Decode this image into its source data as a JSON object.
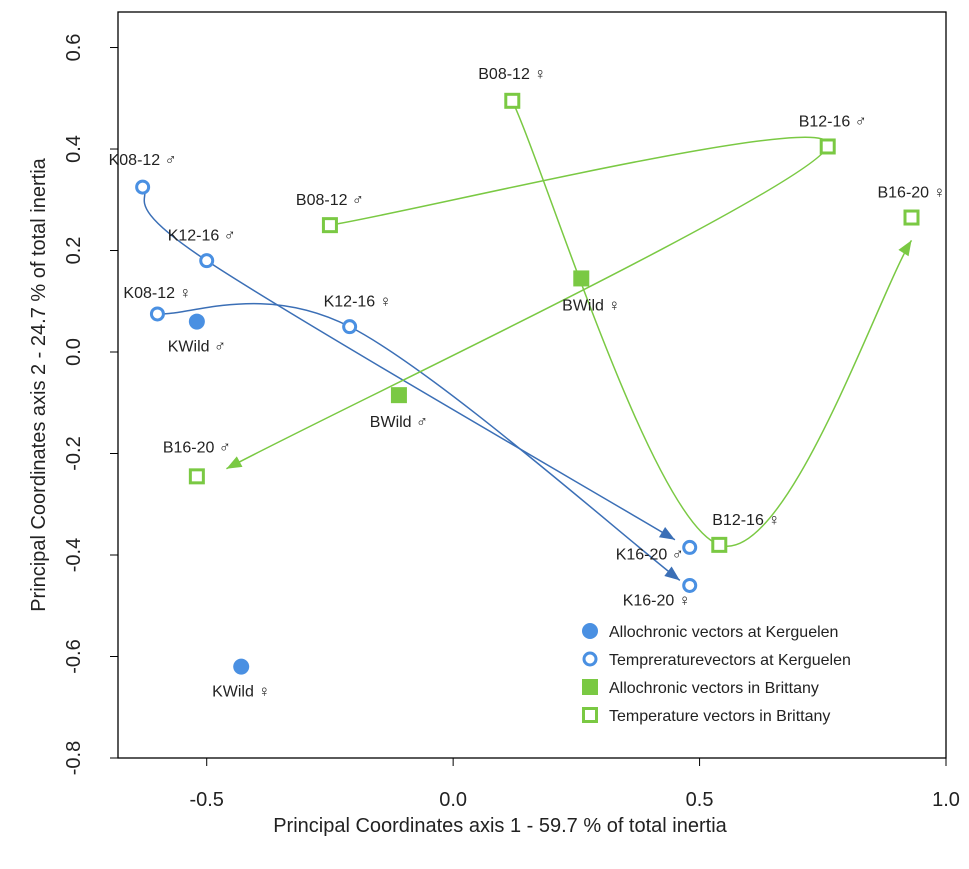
{
  "chart_data": {
    "type": "scatter",
    "xlabel": "Principal Coordinates  axis 1 - 59.7 % of total inertia",
    "ylabel": "Principal Coordinates  axis 2 - 24.7 % of total inertia",
    "xlim": [
      -0.68,
      1.0
    ],
    "ylim": [
      -0.8,
      0.67
    ],
    "xticks": [
      -0.5,
      0.0,
      0.5,
      1.0
    ],
    "xtick_labels": [
      "-0.5",
      "0.0",
      "0.5",
      "1.0"
    ],
    "yticks": [
      -0.8,
      -0.6,
      -0.4,
      -0.2,
      0.0,
      0.2,
      0.4,
      0.6
    ],
    "ytick_labels": [
      "-0.8",
      "-0.6",
      "-0.4",
      "-0.2",
      "0.0",
      "0.2",
      "0.4",
      "0.6"
    ],
    "grid": false,
    "legend_position": "bottom-right",
    "colors": {
      "kerguelen": "#4a90e2",
      "brittany": "#7ac943",
      "kerguelen_line": "#3b6fb6",
      "brittany_line": "#7ac943"
    },
    "series": [
      {
        "name": "Allochronic vectors at Kerguelen",
        "marker": "filled-circle",
        "color": "#4a90e2",
        "points": [
          {
            "label": "KWild ♂",
            "x": -0.52,
            "y": 0.06
          },
          {
            "label": "KWild ♀",
            "x": -0.43,
            "y": -0.62
          }
        ]
      },
      {
        "name": "Tempreraturevectors at Kerguelen",
        "marker": "open-circle",
        "color": "#4a90e2",
        "points": [
          {
            "label": "K08-12 ♂",
            "x": -0.63,
            "y": 0.325
          },
          {
            "label": "K12-16 ♂",
            "x": -0.5,
            "y": 0.18
          },
          {
            "label": "K08-12 ♀",
            "x": -0.6,
            "y": 0.075
          },
          {
            "label": "K12-16 ♀",
            "x": -0.21,
            "y": 0.05
          },
          {
            "label": "K16-20 ♂",
            "x": 0.48,
            "y": -0.385
          },
          {
            "label": "K16-20 ♀",
            "x": 0.48,
            "y": -0.46
          }
        ]
      },
      {
        "name": "Allochronic vectors in Brittany",
        "marker": "filled-square",
        "color": "#7ac943",
        "points": [
          {
            "label": "BWild ♀",
            "x": 0.26,
            "y": 0.145
          },
          {
            "label": "BWild ♂",
            "x": -0.11,
            "y": -0.085
          }
        ]
      },
      {
        "name": "Temperature vectors in Brittany",
        "marker": "open-square",
        "color": "#7ac943",
        "points": [
          {
            "label": "B08-12 ♀",
            "x": 0.12,
            "y": 0.495
          },
          {
            "label": "B12-16 ♂",
            "x": 0.76,
            "y": 0.405
          },
          {
            "label": "B08-12 ♂",
            "x": -0.25,
            "y": 0.25
          },
          {
            "label": "B16-20 ♀",
            "x": 0.93,
            "y": 0.265
          },
          {
            "label": "B16-20 ♂",
            "x": -0.52,
            "y": -0.245
          },
          {
            "label": "B12-16 ♀",
            "x": 0.54,
            "y": -0.38
          }
        ]
      }
    ],
    "vectors": [
      {
        "group": "kerguelen",
        "path": [
          [
            -0.63,
            0.325
          ],
          [
            -0.5,
            0.18
          ],
          [
            0.45,
            -0.37
          ]
        ]
      },
      {
        "group": "kerguelen",
        "path": [
          [
            -0.6,
            0.075
          ],
          [
            -0.21,
            0.05
          ],
          [
            0.46,
            -0.45
          ]
        ]
      },
      {
        "group": "brittany",
        "path": [
          [
            -0.25,
            0.25
          ],
          [
            0.76,
            0.405
          ],
          [
            -0.46,
            -0.23
          ]
        ]
      },
      {
        "group": "brittany",
        "path": [
          [
            0.12,
            0.495
          ],
          [
            0.54,
            -0.38
          ],
          [
            0.93,
            0.22
          ]
        ]
      }
    ]
  }
}
